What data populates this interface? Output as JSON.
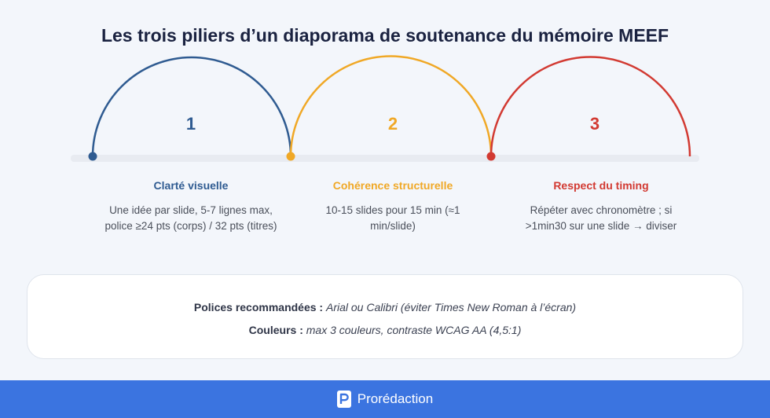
{
  "title": "Les trois piliers d’un diaporama de soutenance du mémoire MEEF",
  "pillars": [
    {
      "number": "1",
      "title": "Clarté visuelle",
      "description": "Une idée par slide, 5-7 lignes max, police ≥24 pts (corps) / 32 pts (titres)",
      "color": "#2f5b91"
    },
    {
      "number": "2",
      "title": "Cohérence structurelle",
      "description": "10-15 slides pour 15 min (≈1 min/slide)",
      "color": "#f0a826"
    },
    {
      "number": "3",
      "title": "Respect du timing",
      "description": "Répéter avec chronomètre ; si >1min30 sur une slide → diviser",
      "color": "#d23a32"
    }
  ],
  "info": {
    "fonts_label": "Polices recommandées :",
    "fonts_value": "Arial ou Calibri (éviter Times New Roman à l’écran)",
    "colors_label": "Couleurs :",
    "colors_value": "max 3 couleurs, contraste WCAG AA (4,5:1)"
  },
  "footer": {
    "brand": "Prorédaction",
    "color": "#3b74e0"
  }
}
